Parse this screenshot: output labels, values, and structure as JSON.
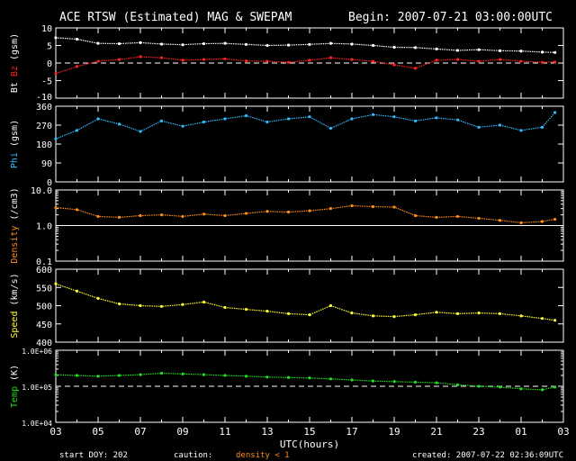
{
  "header": {
    "title": "ACE RTSW (Estimated) MAG & SWEPAM",
    "begin": "Begin: 2007-07-21 03:00:00UTC"
  },
  "footer": {
    "start_doy": "start DOY: 202",
    "caution": "caution:",
    "density_note": "density < 1",
    "created": "created: 2007-07-22 02:36:09UTC",
    "xlabel": "UTC(hours)"
  },
  "colors": {
    "bt": "#ffffff",
    "bz": "#ff2020",
    "phi": "#33bbff",
    "density": "#ff8c1a",
    "speed": "#ffff33",
    "temp": "#22dd22",
    "axis": "#ffffff",
    "caution": "#ff8c1a"
  },
  "chart_data": [
    {
      "type": "scatter",
      "panel": "mag",
      "ylabel_parts": [
        "Bt",
        "Bz",
        "(gsm)"
      ],
      "ylim": [
        -10,
        10
      ],
      "yticks": [
        -5,
        0,
        5,
        10
      ],
      "ytick_labels": [
        "-5",
        "0",
        "5",
        "10"
      ],
      "extra_ytick_labels": [
        "-10"
      ],
      "dashed_at": 0,
      "series": [
        {
          "name": "Bt",
          "x": [
            0,
            1,
            2,
            3,
            4,
            5,
            6,
            7,
            8,
            9,
            10,
            11,
            12,
            13,
            14,
            15,
            16,
            17,
            18,
            19,
            20,
            21,
            22,
            23,
            23.6
          ],
          "values": [
            7.2,
            6.8,
            5.6,
            5.5,
            5.8,
            5.4,
            5.2,
            5.5,
            5.6,
            5.3,
            5.0,
            5.1,
            5.3,
            5.6,
            5.4,
            5.0,
            4.5,
            4.4,
            4.0,
            3.6,
            3.8,
            3.5,
            3.4,
            3.1,
            3.0
          ]
        },
        {
          "name": "Bz",
          "x": [
            0,
            1,
            2,
            3,
            4,
            5,
            6,
            7,
            8,
            9,
            10,
            11,
            12,
            13,
            14,
            15,
            16,
            17,
            18,
            19,
            20,
            21,
            22,
            23,
            23.6
          ],
          "values": [
            -3.0,
            -1.0,
            0.5,
            1.0,
            1.8,
            1.5,
            0.8,
            1.0,
            1.2,
            0.6,
            0.5,
            0.2,
            0.8,
            1.5,
            1.0,
            0.5,
            -0.5,
            -1.5,
            0.8,
            1.0,
            0.5,
            1.0,
            0.5,
            0.2,
            0.3
          ]
        }
      ]
    },
    {
      "type": "scatter",
      "panel": "phi",
      "ylabel_parts": [
        "Phi",
        "(gsm)"
      ],
      "ylim": [
        0,
        360
      ],
      "yticks": [
        0,
        90,
        180,
        270,
        360
      ],
      "ytick_labels": [
        "0",
        "90",
        "180",
        "270",
        "360"
      ],
      "series": [
        {
          "name": "Phi",
          "x": [
            0,
            1,
            2,
            3,
            4,
            5,
            6,
            7,
            8,
            9,
            10,
            11,
            12,
            13,
            14,
            15,
            16,
            17,
            18,
            19,
            20,
            21,
            22,
            23,
            23.6
          ],
          "values": [
            205,
            245,
            300,
            275,
            240,
            290,
            265,
            285,
            300,
            315,
            285,
            300,
            310,
            255,
            300,
            320,
            310,
            290,
            305,
            295,
            260,
            270,
            245,
            260,
            330
          ]
        }
      ]
    },
    {
      "type": "scatter",
      "panel": "density",
      "scale": "log",
      "ylabel_parts": [
        "Density",
        "(/cm3)"
      ],
      "ylim": [
        0.1,
        10
      ],
      "yticks": [
        0.1,
        1,
        10
      ],
      "ytick_labels": [
        "0.1",
        "1.0",
        "10.0"
      ],
      "solid_at": 1,
      "series": [
        {
          "name": "Density",
          "x": [
            0,
            1,
            2,
            3,
            4,
            5,
            6,
            7,
            8,
            9,
            10,
            11,
            12,
            13,
            14,
            15,
            16,
            17,
            18,
            19,
            20,
            21,
            22,
            23,
            23.6
          ],
          "values": [
            3.2,
            2.8,
            1.8,
            1.7,
            1.9,
            2.0,
            1.8,
            2.1,
            1.9,
            2.2,
            2.5,
            2.4,
            2.6,
            3.0,
            3.6,
            3.4,
            3.3,
            1.9,
            1.7,
            1.8,
            1.6,
            1.4,
            1.2,
            1.3,
            1.5
          ]
        }
      ]
    },
    {
      "type": "scatter",
      "panel": "speed",
      "ylabel_parts": [
        "Speed",
        "(km/s)"
      ],
      "ylim": [
        400,
        600
      ],
      "yticks": [
        400,
        450,
        500,
        550,
        600
      ],
      "ytick_labels": [
        "400",
        "450",
        "500",
        "550",
        "600"
      ],
      "series": [
        {
          "name": "Speed",
          "x": [
            0,
            1,
            2,
            3,
            4,
            5,
            6,
            7,
            8,
            9,
            10,
            11,
            12,
            13,
            14,
            15,
            16,
            17,
            18,
            19,
            20,
            21,
            22,
            23,
            23.6
          ],
          "values": [
            560,
            540,
            520,
            505,
            500,
            498,
            503,
            510,
            495,
            490,
            485,
            478,
            475,
            500,
            480,
            472,
            470,
            475,
            482,
            478,
            480,
            478,
            472,
            465,
            460
          ]
        }
      ]
    },
    {
      "type": "scatter",
      "panel": "temp",
      "scale": "log",
      "ylabel_parts": [
        "Temp",
        "(K)"
      ],
      "ylim": [
        10000,
        1000000
      ],
      "yticks": [
        10000,
        100000,
        1000000
      ],
      "ytick_labels": [
        "1.0E+04",
        "1.0E+05",
        "1.0E+06"
      ],
      "dashed_at": 100000,
      "series": [
        {
          "name": "Temp",
          "x": [
            0,
            1,
            2,
            3,
            4,
            5,
            6,
            7,
            8,
            9,
            10,
            11,
            12,
            13,
            14,
            15,
            16,
            17,
            18,
            19,
            20,
            21,
            22,
            23,
            23.6
          ],
          "values": [
            210000,
            200000,
            190000,
            200000,
            210000,
            230000,
            220000,
            210000,
            200000,
            190000,
            180000,
            175000,
            170000,
            160000,
            150000,
            140000,
            135000,
            130000,
            125000,
            110000,
            100000,
            95000,
            85000,
            80000,
            95000
          ]
        }
      ]
    }
  ],
  "xaxis": {
    "range_hours": [
      0,
      24
    ],
    "tick_labels": [
      "03",
      "05",
      "07",
      "09",
      "11",
      "13",
      "15",
      "17",
      "19",
      "21",
      "23",
      "01",
      "03"
    ]
  }
}
